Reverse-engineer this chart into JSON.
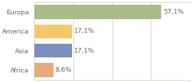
{
  "categories": [
    "Europa",
    "America",
    "Asia",
    "Africa"
  ],
  "values": [
    57.1,
    17.1,
    17.1,
    8.6
  ],
  "labels": [
    "57,1%",
    "17,1%",
    "17,1%",
    "8,6%"
  ],
  "bar_colors": [
    "#a8bc8a",
    "#f5c869",
    "#7b8fc0",
    "#e8aa78"
  ],
  "background_color": "#ffffff",
  "xlim": [
    0,
    70
  ],
  "bar_height": 0.72,
  "label_fontsize": 6.8,
  "category_fontsize": 6.8,
  "grid_color": "#c8d8b0",
  "grid_xticks": [
    0,
    17.5,
    35,
    52.5,
    70
  ]
}
